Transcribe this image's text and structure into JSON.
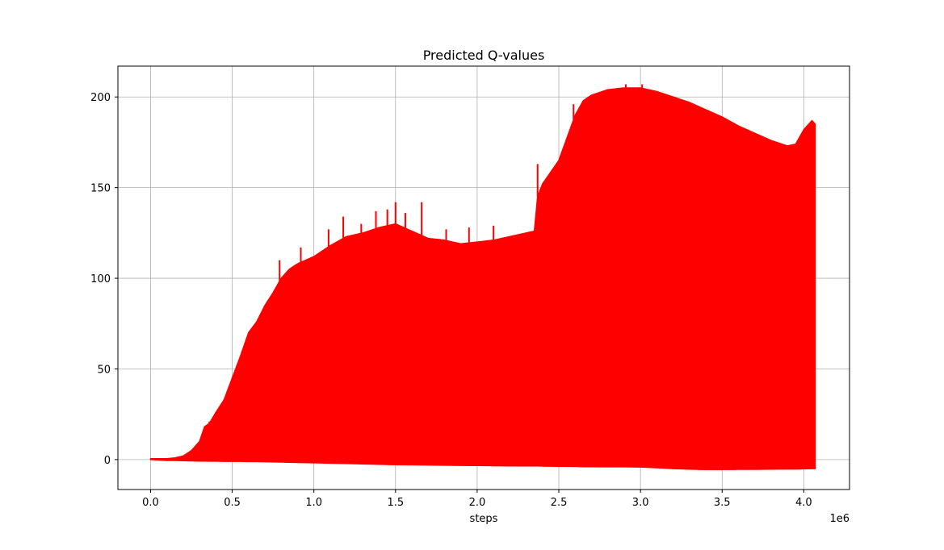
{
  "chart_data": {
    "type": "area",
    "title": "Predicted Q-values",
    "xlabel": "steps",
    "ylabel": "",
    "x_offset_label": "1e6",
    "xlim": [
      -0.2,
      4.28
    ],
    "ylim": [
      -16.5,
      217
    ],
    "x_ticks": [
      0.0,
      0.5,
      1.0,
      1.5,
      2.0,
      2.5,
      3.0,
      3.5,
      4.0
    ],
    "x_tick_labels": [
      "0.0",
      "0.5",
      "1.0",
      "1.5",
      "2.0",
      "2.5",
      "3.0",
      "3.5",
      "4.0"
    ],
    "y_ticks": [
      0,
      50,
      100,
      150,
      200
    ],
    "y_tick_labels": [
      "0",
      "50",
      "100",
      "150",
      "200"
    ],
    "grid": true,
    "color": "#ff0000",
    "series": [
      {
        "x": [
          0.0,
          0.1,
          0.15,
          0.2,
          0.25,
          0.3,
          0.33,
          0.36,
          0.4,
          0.45,
          0.5,
          0.55,
          0.6,
          0.65,
          0.7,
          0.75,
          0.8,
          0.85,
          0.9,
          1.0,
          1.1,
          1.2,
          1.3,
          1.4,
          1.5,
          1.6,
          1.7,
          1.8,
          1.9,
          2.0,
          2.1,
          2.2,
          2.3,
          2.35,
          2.37,
          2.4,
          2.5,
          2.6,
          2.65,
          2.7,
          2.8,
          2.9,
          3.0,
          3.1,
          3.2,
          3.3,
          3.4,
          3.5,
          3.6,
          3.7,
          3.8,
          3.9,
          3.95,
          4.0,
          4.05,
          4.07
        ],
        "upper": [
          0.5,
          0.5,
          1,
          2,
          5,
          10,
          18,
          20,
          26,
          33,
          45,
          57,
          70,
          76,
          85,
          92,
          100,
          105,
          108,
          112,
          118,
          123,
          125,
          128,
          130,
          126,
          122,
          121,
          119,
          120,
          121,
          123,
          125,
          126,
          145,
          152,
          165,
          190,
          198,
          201,
          204,
          205,
          205,
          203,
          200,
          197,
          193,
          189,
          184,
          180,
          176,
          173,
          174,
          182,
          187,
          185
        ],
        "lower": [
          0,
          -0.5,
          -0.5,
          -0.6,
          -0.7,
          -0.8,
          -0.8,
          -0.9,
          -0.9,
          -1.0,
          -1.0,
          -1.0,
          -1.1,
          -1.1,
          -1.2,
          -1.3,
          -1.4,
          -1.5,
          -1.6,
          -1.8,
          -2.0,
          -2.2,
          -2.4,
          -2.6,
          -2.8,
          -2.9,
          -3.0,
          -3.1,
          -3.2,
          -3.3,
          -3.4,
          -3.5,
          -3.5,
          -3.5,
          -3.5,
          -3.6,
          -3.7,
          -3.8,
          -3.9,
          -3.9,
          -4.0,
          -4.0,
          -4.1,
          -4.5,
          -5.0,
          -5.3,
          -5.5,
          -5.5,
          -5.4,
          -5.4,
          -5.3,
          -5.2,
          -5.2,
          -5.1,
          -5.0,
          -5.0
        ]
      }
    ],
    "spikes": {
      "x": [
        0.36,
        0.56,
        0.79,
        0.92,
        1.09,
        1.18,
        1.29,
        1.38,
        1.45,
        1.5,
        1.56,
        1.66,
        1.81,
        1.95,
        2.1,
        2.37,
        2.59,
        2.67,
        2.73,
        2.91,
        3.01
      ],
      "y": [
        21,
        58,
        110,
        117,
        127,
        134,
        130,
        137,
        138,
        142,
        136,
        142,
        127,
        128,
        129,
        163,
        196,
        199,
        202,
        207,
        207
      ]
    }
  }
}
